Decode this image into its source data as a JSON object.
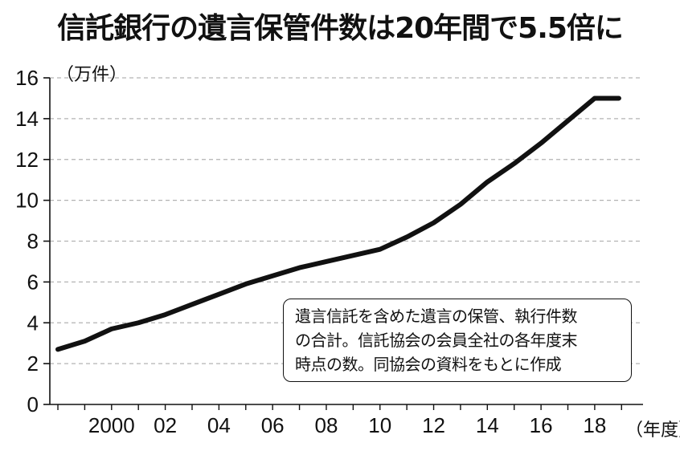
{
  "title": "信託銀行の遺言保管件数は20年間で5.5倍に",
  "note": {
    "lines": [
      "遺言信託を含めた遺言の保管、執行件数",
      "の合計。信託協会の会員全社の各年度末",
      "時点の数。同協会の資料をもとに作成"
    ]
  },
  "chart_data": {
    "type": "line",
    "title": "信託銀行の遺言保管件数は20年間で5.5倍に",
    "ylabel": "（万件）",
    "xlabel": "（年度）",
    "ylim": [
      0,
      16
    ],
    "yticks": [
      0,
      2,
      4,
      6,
      8,
      10,
      12,
      14,
      16
    ],
    "xtick_labels": [
      "2000",
      "02",
      "04",
      "06",
      "08",
      "10",
      "12",
      "14",
      "16",
      "18"
    ],
    "grid": "horizontal dashed",
    "series": [
      {
        "x": [
          1998,
          1999,
          2000,
          2001,
          2002,
          2003,
          2004,
          2005,
          2006,
          2007,
          2008,
          2009,
          2010,
          2011,
          2012,
          2013,
          2014,
          2015,
          2016,
          2017,
          2018,
          2019
        ],
        "values": [
          2.7,
          3.1,
          3.7,
          4.0,
          4.4,
          4.9,
          5.4,
          5.9,
          6.3,
          6.7,
          7.0,
          7.3,
          7.6,
          8.2,
          8.9,
          9.8,
          10.9,
          11.8,
          12.8,
          13.9,
          15.0,
          15.0
        ]
      }
    ],
    "colors": {
      "line": "#111111",
      "grid": "#b3b3b3",
      "axis": "#111111"
    }
  }
}
